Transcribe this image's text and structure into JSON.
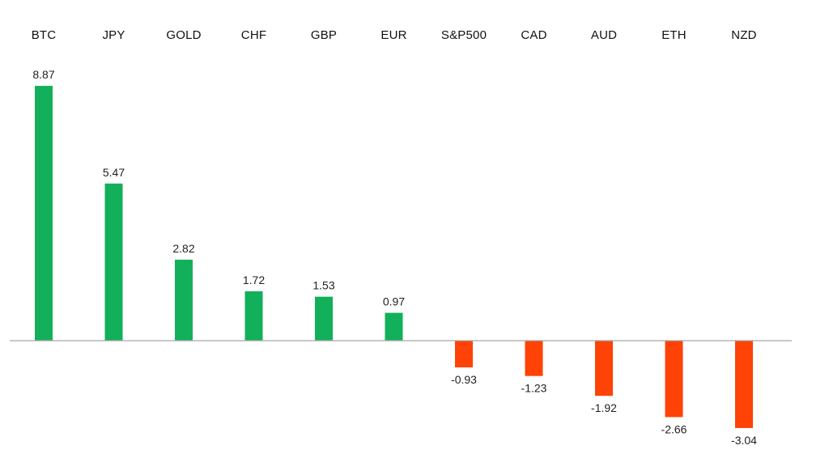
{
  "chart_data": {
    "type": "bar",
    "categories": [
      "BTC",
      "JPY",
      "GOLD",
      "CHF",
      "GBP",
      "EUR",
      "S&P500",
      "CAD",
      "AUD",
      "ETH",
      "NZD"
    ],
    "values": [
      8.87,
      5.47,
      2.82,
      1.72,
      1.53,
      0.97,
      -0.93,
      -1.23,
      -1.92,
      -2.66,
      -3.04
    ],
    "value_labels": [
      "8.87",
      "5.47",
      "2.82",
      "1.72",
      "1.53",
      "0.97",
      "-0.93",
      "-1.23",
      "-1.92",
      "-2.66",
      "-3.04"
    ],
    "title": "",
    "xlabel": "",
    "ylabel": "",
    "ylim": [
      -3.04,
      8.87
    ],
    "grid": false,
    "legend": "none",
    "category_labels_position": "top",
    "colors": {
      "positive": "#12B05B",
      "negative": "#FF4205",
      "baseline": "#A6A6A6",
      "text": "#111111"
    }
  }
}
